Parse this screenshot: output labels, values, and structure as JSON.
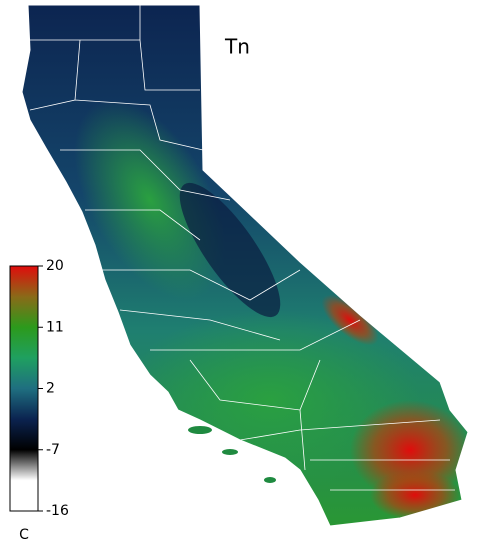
{
  "map": {
    "title": "Tn",
    "colorbar": {
      "lim": [
        -16,
        20
      ],
      "ticks": [
        20,
        11,
        2,
        -7,
        -16
      ],
      "unit": "C",
      "colors": [
        "#ffffff",
        "#ffffff",
        "#000000",
        "#0b2350",
        "#1f6f80",
        "#1fa060",
        "#2c9a1c",
        "#8a6a18",
        "#e00c0c"
      ]
    }
  }
}
